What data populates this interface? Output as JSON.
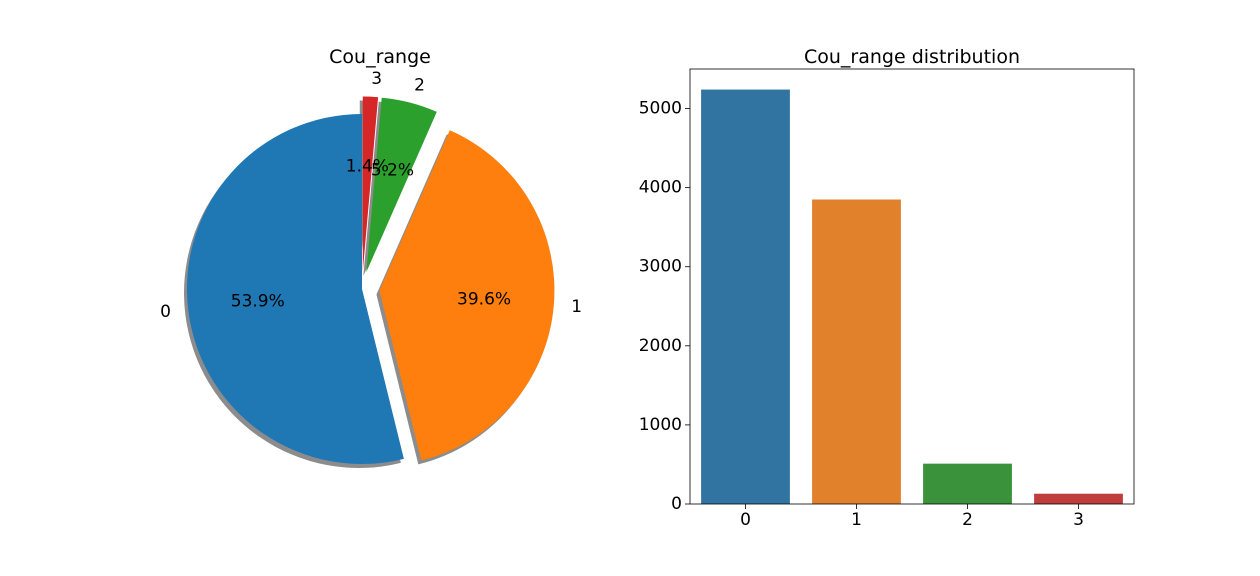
{
  "chart_data": [
    {
      "type": "pie",
      "title": "Cou_range",
      "labels": [
        "0",
        "1",
        "2",
        "3"
      ],
      "percent_labels": [
        "53.9%",
        "39.6%",
        "5.2%",
        "1.4%"
      ],
      "values": [
        53.9,
        39.6,
        5.2,
        1.4
      ],
      "colors": [
        "#1f77b4",
        "#ff7f0e",
        "#2ca02c",
        "#d62728"
      ],
      "start_angle_deg": 90,
      "direction": "counterclockwise",
      "explode": [
        0.0,
        0.1,
        0.1,
        0.1
      ],
      "shadow": true
    },
    {
      "type": "bar",
      "title": "Cou_range distribution",
      "categories": [
        "0",
        "1",
        "2",
        "3"
      ],
      "values": [
        5240,
        3850,
        510,
        130
      ],
      "colors": [
        "#3274a1",
        "#e1812c",
        "#3a923a",
        "#c03d3e"
      ],
      "xlabel": "",
      "ylabel": "",
      "ylim": [
        0,
        5500
      ],
      "yticks": [
        "0",
        "1000",
        "2000",
        "3000",
        "4000",
        "5000"
      ],
      "grid": false
    }
  ]
}
